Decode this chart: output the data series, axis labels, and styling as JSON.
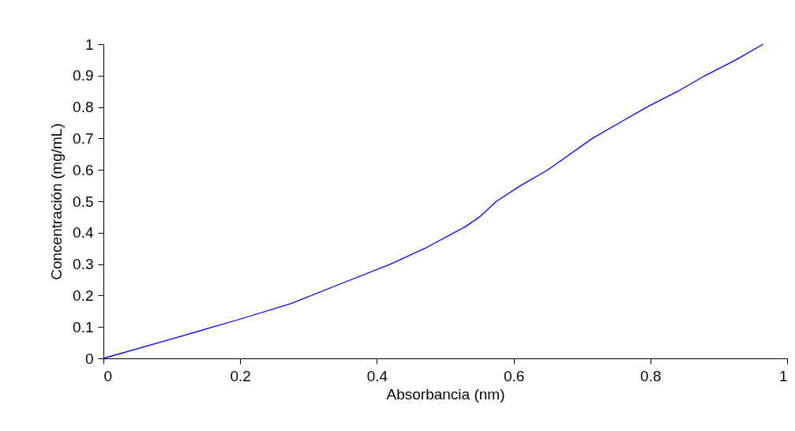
{
  "chart_data": {
    "type": "line",
    "xlabel": "Absorbancia (nm)",
    "ylabel": "Concentración (mg/mL)",
    "x": [
      0,
      0.1,
      0.2,
      0.275,
      0.35,
      0.42,
      0.47,
      0.53,
      0.55,
      0.575,
      0.61,
      0.65,
      0.715,
      0.755,
      0.795,
      0.84,
      0.88,
      0.925,
      0.965
    ],
    "series": [
      {
        "color": "#0000ff",
        "values": [
          0,
          0.062,
          0.125,
          0.175,
          0.24,
          0.3,
          0.35,
          0.42,
          0.45,
          0.5,
          0.55,
          0.6,
          0.7,
          0.75,
          0.8,
          0.85,
          0.9,
          0.95,
          1
        ]
      }
    ],
    "xlim": [
      0,
      1
    ],
    "xticks": [
      0,
      0.2,
      0.4,
      0.6,
      0.8,
      1
    ],
    "ylim": [
      0,
      1
    ],
    "yticks": [
      0,
      0.1,
      0.2,
      0.3,
      0.4,
      0.5,
      0.6,
      0.7,
      0.8,
      0.9,
      1
    ],
    "grid": false,
    "legend": false,
    "marker": "none",
    "line_style": "solid"
  }
}
